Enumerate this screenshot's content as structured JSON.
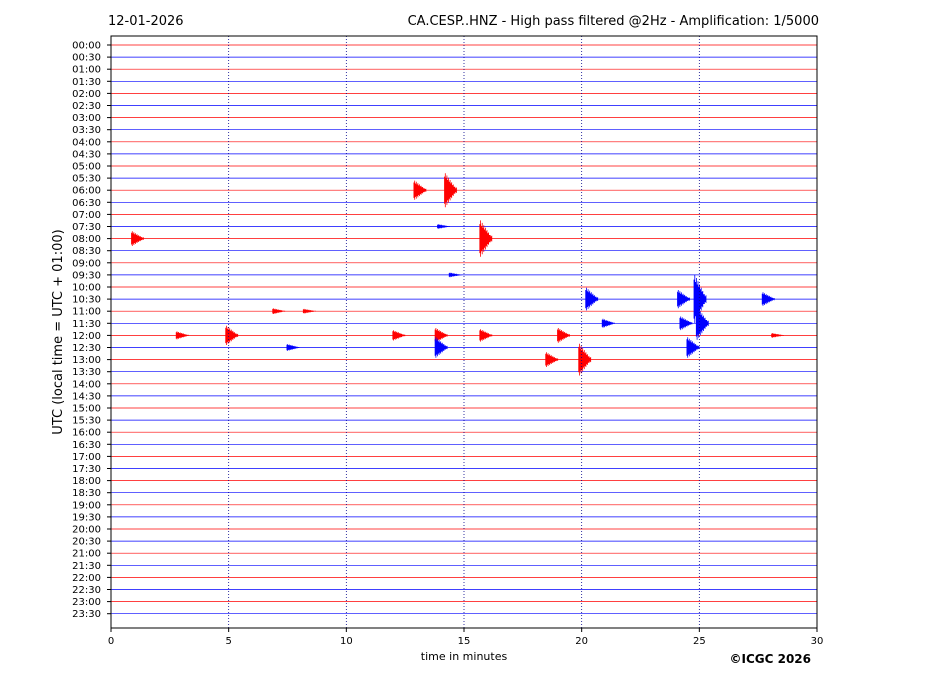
{
  "header": {
    "date": "12-01-2026",
    "station_title": "CA.CESP..HNZ - High pass filtered @2Hz - Amplification: 1/5000"
  },
  "footer": {
    "copyright": "©ICGC 2026"
  },
  "chart_data": {
    "type": "line",
    "title": "CA.CESP..HNZ - High pass filtered @2Hz - Amplification: 1/5000",
    "xlabel": "time in minutes",
    "ylabel": "UTC (local time = UTC + 01:00)",
    "xlim": [
      0,
      30
    ],
    "xticks": [
      "0",
      "5",
      "10",
      "15",
      "20",
      "25",
      "30"
    ],
    "grid": "vertical dotted at 5, 10, 15, 20, 25",
    "trace_colors": [
      "#ff0000",
      "#0000ff"
    ],
    "rows": [
      "00:00",
      "00:30",
      "01:00",
      "01:30",
      "02:00",
      "02:30",
      "03:00",
      "03:30",
      "04:00",
      "04:30",
      "05:00",
      "05:30",
      "06:00",
      "06:30",
      "07:00",
      "07:30",
      "08:00",
      "08:30",
      "09:00",
      "09:30",
      "10:00",
      "10:30",
      "11:00",
      "11:30",
      "12:00",
      "12:30",
      "13:00",
      "13:30",
      "14:00",
      "14:30",
      "15:00",
      "15:30",
      "16:00",
      "16:30",
      "17:00",
      "17:30",
      "18:00",
      "18:30",
      "19:00",
      "19:30",
      "20:00",
      "20:30",
      "21:00",
      "21:30",
      "22:00",
      "22:30",
      "23:00",
      "23:30"
    ],
    "events": [
      {
        "row": "06:00",
        "minute": 13.0,
        "amplitude": 1.7
      },
      {
        "row": "06:00",
        "minute": 14.3,
        "amplitude": 3.0
      },
      {
        "row": "07:30",
        "minute": 14.0,
        "amplitude": 0.4
      },
      {
        "row": "08:00",
        "minute": 1.0,
        "amplitude": 1.3
      },
      {
        "row": "08:00",
        "minute": 15.8,
        "amplitude": 3.2
      },
      {
        "row": "09:30",
        "minute": 14.5,
        "amplitude": 0.4
      },
      {
        "row": "10:30",
        "minute": 20.3,
        "amplitude": 2.0
      },
      {
        "row": "10:30",
        "minute": 24.2,
        "amplitude": 1.6
      },
      {
        "row": "10:30",
        "minute": 24.9,
        "amplitude": 4.3
      },
      {
        "row": "10:30",
        "minute": 27.8,
        "amplitude": 1.2
      },
      {
        "row": "11:00",
        "minute": 7.0,
        "amplitude": 0.5
      },
      {
        "row": "11:00",
        "minute": 8.3,
        "amplitude": 0.4
      },
      {
        "row": "11:30",
        "minute": 21.0,
        "amplitude": 0.8
      },
      {
        "row": "11:30",
        "minute": 24.3,
        "amplitude": 1.2
      },
      {
        "row": "11:30",
        "minute": 25.0,
        "amplitude": 2.9
      },
      {
        "row": "12:00",
        "minute": 2.9,
        "amplitude": 0.7
      },
      {
        "row": "12:00",
        "minute": 5.0,
        "amplitude": 1.7
      },
      {
        "row": "12:00",
        "minute": 12.1,
        "amplitude": 0.9
      },
      {
        "row": "12:00",
        "minute": 13.9,
        "amplitude": 1.3
      },
      {
        "row": "12:00",
        "minute": 15.8,
        "amplitude": 1.1
      },
      {
        "row": "12:00",
        "minute": 19.1,
        "amplitude": 1.3
      },
      {
        "row": "12:00",
        "minute": 28.2,
        "amplitude": 0.4
      },
      {
        "row": "12:30",
        "minute": 7.6,
        "amplitude": 0.6
      },
      {
        "row": "12:30",
        "minute": 13.9,
        "amplitude": 1.8
      },
      {
        "row": "12:30",
        "minute": 24.6,
        "amplitude": 1.8
      },
      {
        "row": "13:00",
        "minute": 18.6,
        "amplitude": 1.3
      },
      {
        "row": "13:00",
        "minute": 20.0,
        "amplitude": 2.8
      }
    ]
  }
}
